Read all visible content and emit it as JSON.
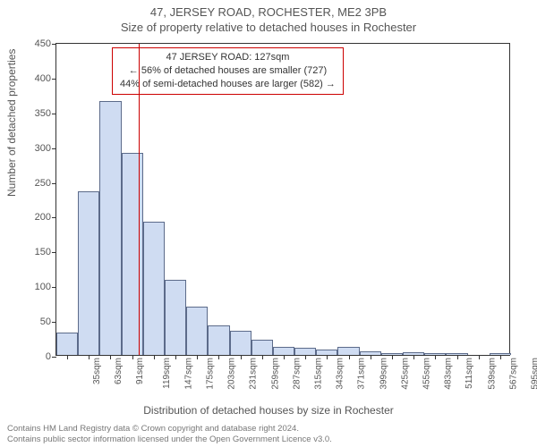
{
  "header": {
    "address_line": "47, JERSEY ROAD, ROCHESTER, ME2 3PB",
    "subtitle": "Size of property relative to detached houses in Rochester"
  },
  "axes": {
    "y_label": "Number of detached properties",
    "x_label": "Distribution of detached houses by size in Rochester",
    "y_min": 0,
    "y_max": 450,
    "y_step": 50,
    "x_ticks": [
      "35sqm",
      "63sqm",
      "91sqm",
      "119sqm",
      "147sqm",
      "175sqm",
      "203sqm",
      "231sqm",
      "259sqm",
      "287sqm",
      "315sqm",
      "343sqm",
      "371sqm",
      "399sqm",
      "425sqm",
      "455sqm",
      "483sqm",
      "511sqm",
      "539sqm",
      "567sqm",
      "595sqm"
    ]
  },
  "histogram": {
    "values": [
      32,
      235,
      365,
      290,
      192,
      108,
      70,
      43,
      35,
      22,
      12,
      10,
      8,
      12,
      5,
      3,
      4,
      2,
      3,
      0,
      2
    ],
    "bar_fill": "#cfdcf2",
    "bar_stroke": "#5c6b8a",
    "bar_width_ratio": 1.0
  },
  "marker": {
    "color": "#cc0000",
    "x_value_sqm": 127
  },
  "annotation": {
    "line1": "47 JERSEY ROAD: 127sqm",
    "line2": "← 56% of detached houses are smaller (727)",
    "line3": "44% of semi-detached houses are larger (582) →",
    "border_color": "#cc0000",
    "background": "#ffffff"
  },
  "footer": {
    "line1": "Contains HM Land Registry data © Crown copyright and database right 2024.",
    "line2": "Contains public sector information licensed under the Open Government Licence v3.0."
  },
  "chart_style": {
    "plot_bg": "#ffffff",
    "axis_color": "#333333",
    "tick_fontsize": 11,
    "label_fontsize": 12,
    "title_fontsize": 13
  }
}
